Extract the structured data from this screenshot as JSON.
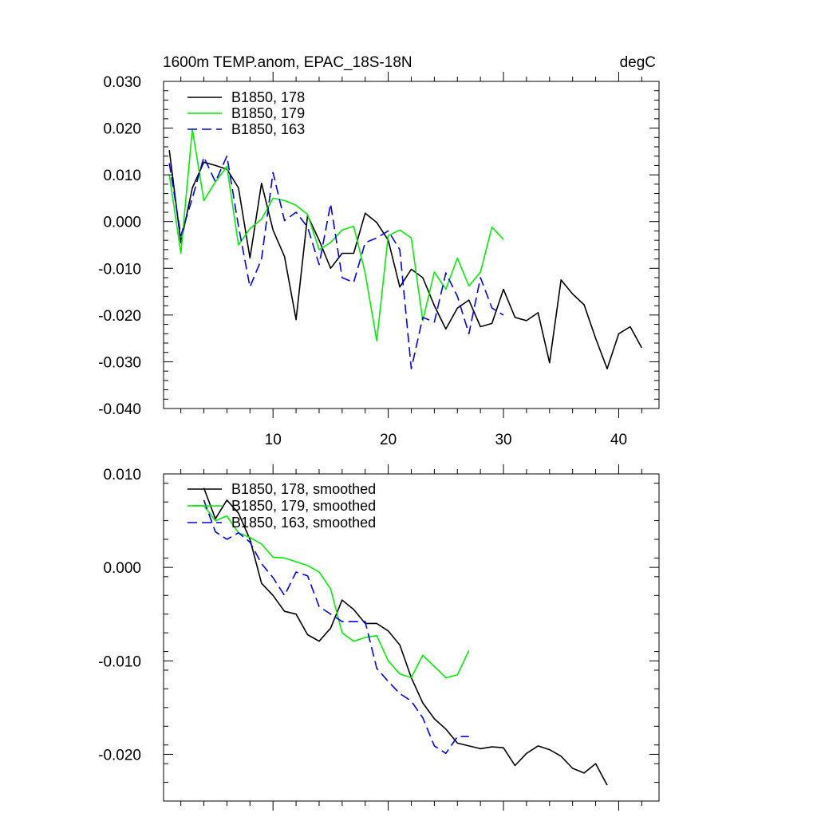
{
  "chart_data": [
    {
      "type": "line",
      "title": "1600m TEMP.anom, EPAC_18S-18N",
      "units": "degC",
      "xlabel": "",
      "ylabel": "",
      "xlim": [
        0.5,
        43.5
      ],
      "ylim": [
        -0.04,
        0.03
      ],
      "xticks": [
        10,
        20,
        30,
        40
      ],
      "xtick_labels": [
        "10",
        "20",
        "30",
        "40"
      ],
      "yticks": [
        0.03,
        0.02,
        0.01,
        0.0,
        -0.01,
        -0.02,
        -0.03,
        -0.04
      ],
      "ytick_labels": [
        "0.030",
        "0.020",
        "0.010",
        "0.000",
        "-0.010",
        "-0.020",
        "-0.030",
        "-0.040"
      ],
      "grid": false,
      "legend_position": "top-left",
      "series": [
        {
          "name": "B1850, 178",
          "color": "#000000",
          "dash": "solid",
          "x": [
            1,
            2,
            3,
            4,
            5,
            6,
            7,
            8,
            9,
            10,
            11,
            12,
            13,
            14,
            15,
            16,
            17,
            18,
            19,
            20,
            21,
            22,
            23,
            24,
            25,
            26,
            27,
            28,
            29,
            30,
            31,
            32,
            33,
            34,
            35,
            36,
            37,
            38,
            39,
            40,
            41,
            42
          ],
          "values": [
            0.0153,
            -0.0045,
            0.0072,
            0.0127,
            0.012,
            0.0112,
            0.0072,
            -0.0078,
            0.0082,
            -0.0018,
            -0.0075,
            -0.021,
            0.0013,
            -0.004,
            -0.01,
            -0.0068,
            -0.0068,
            0.0018,
            -0.0002,
            -0.004,
            -0.014,
            -0.0102,
            -0.012,
            -0.018,
            -0.023,
            -0.0185,
            -0.0168,
            -0.0225,
            -0.0218,
            -0.0145,
            -0.0205,
            -0.0212,
            -0.0195,
            -0.0302,
            -0.0125,
            -0.0155,
            -0.0178,
            -0.025,
            -0.0315,
            -0.024,
            -0.0225,
            -0.027
          ]
        },
        {
          "name": "B1850, 179",
          "color": "#00ee00",
          "dash": "solid",
          "x": [
            1,
            2,
            3,
            4,
            5,
            6,
            7,
            8,
            9,
            10,
            11,
            12,
            13,
            14,
            15,
            16,
            17,
            18,
            19,
            20,
            21,
            22,
            23,
            24,
            25,
            26,
            27,
            28,
            29,
            30
          ],
          "values": [
            0.01,
            -0.0068,
            0.0198,
            0.0045,
            0.0085,
            0.0118,
            -0.005,
            -0.0015,
            0.0005,
            0.005,
            0.0045,
            0.0035,
            0.0015,
            -0.006,
            -0.0045,
            -0.0018,
            -0.001,
            -0.011,
            -0.0255,
            -0.003,
            -0.0018,
            -0.0035,
            -0.0212,
            -0.0108,
            -0.0145,
            -0.0078,
            -0.0138,
            -0.0108,
            -0.0012,
            -0.0038
          ]
        },
        {
          "name": "B1850, 163",
          "color": "#0000ee",
          "dash": "dashed",
          "x": [
            1,
            2,
            3,
            4,
            5,
            6,
            7,
            8,
            9,
            10,
            11,
            12,
            13,
            14,
            15,
            16,
            17,
            18,
            19,
            20,
            21,
            22,
            23,
            24,
            25,
            26,
            27,
            28,
            29,
            30
          ],
          "values": [
            0.0125,
            -0.003,
            0.005,
            0.0138,
            0.0085,
            0.014,
            -0.001,
            -0.014,
            -0.008,
            0.0105,
            0.0002,
            0.002,
            -0.0012,
            -0.0092,
            0.0038,
            -0.012,
            -0.013,
            -0.0045,
            -0.0035,
            -0.002,
            -0.006,
            -0.0315,
            -0.0205,
            -0.0215,
            -0.011,
            -0.016,
            -0.024,
            -0.012,
            -0.0185,
            -0.02
          ]
        }
      ]
    },
    {
      "type": "line",
      "title": "",
      "xlabel": "",
      "ylabel": "",
      "xlim": [
        0.5,
        43.5
      ],
      "ylim": [
        -0.025,
        0.01
      ],
      "xticks": [
        10,
        20,
        30,
        40
      ],
      "xtick_labels": [],
      "yticks": [
        0.01,
        0.0,
        -0.01,
        -0.02
      ],
      "ytick_labels": [
        "0.010",
        "0.000",
        "-0.010",
        "-0.020"
      ],
      "grid": false,
      "legend_position": "top-left",
      "series": [
        {
          "name": "B1850, 178, smoothed",
          "color": "#000000",
          "dash": "solid",
          "x": [
            4,
            5,
            6,
            7,
            8,
            9,
            10,
            11,
            12,
            13,
            14,
            15,
            16,
            17,
            18,
            19,
            20,
            21,
            22,
            23,
            24,
            25,
            26,
            27,
            28,
            29,
            30,
            31,
            32,
            33,
            34,
            35,
            36,
            37,
            38,
            39
          ],
          "values": [
            0.0085,
            0.0052,
            0.0072,
            0.0058,
            0.003,
            -0.0017,
            -0.003,
            -0.0047,
            -0.005,
            -0.0072,
            -0.0079,
            -0.0065,
            -0.0035,
            -0.0045,
            -0.006,
            -0.006,
            -0.0068,
            -0.0083,
            -0.0118,
            -0.0145,
            -0.0162,
            -0.0173,
            -0.0188,
            -0.0191,
            -0.0194,
            -0.0192,
            -0.0193,
            -0.0212,
            -0.0199,
            -0.0191,
            -0.0195,
            -0.0202,
            -0.0215,
            -0.022,
            -0.021,
            -0.0233
          ]
        },
        {
          "name": "B1850, 179, smoothed",
          "color": "#00ee00",
          "dash": "solid",
          "x": [
            3,
            4,
            5,
            6,
            7,
            8,
            9,
            10,
            11,
            12,
            13,
            14,
            15,
            16,
            17,
            18,
            19,
            20,
            21,
            22,
            23,
            24,
            25,
            26,
            27
          ],
          "values": [
            0.0066,
            0.0066,
            0.005,
            0.0055,
            0.0037,
            0.0032,
            0.0025,
            0.0011,
            0.001,
            0.0006,
            0.0002,
            -0.0005,
            -0.0023,
            -0.007,
            -0.0079,
            -0.0075,
            -0.0073,
            -0.01,
            -0.0114,
            -0.0118,
            -0.0094,
            -0.0106,
            -0.0118,
            -0.0115,
            -0.0089
          ]
        },
        {
          "name": "B1850, 163, smoothed",
          "color": "#0000ee",
          "dash": "dashed",
          "x": [
            4,
            5,
            6,
            7,
            8,
            9,
            10,
            11,
            12,
            13,
            14,
            15,
            16,
            17,
            18,
            19,
            20,
            21,
            22,
            23,
            24,
            25,
            26,
            27
          ],
          "values": [
            0.0072,
            0.0038,
            0.003,
            0.0037,
            0.0027,
            0.0004,
            -0.0011,
            -0.003,
            -0.0005,
            -0.0009,
            -0.0042,
            -0.005,
            -0.0058,
            -0.0058,
            -0.0058,
            -0.0108,
            -0.0122,
            -0.0135,
            -0.0143,
            -0.0161,
            -0.0191,
            -0.0199,
            -0.0181,
            -0.0181
          ]
        }
      ]
    }
  ]
}
